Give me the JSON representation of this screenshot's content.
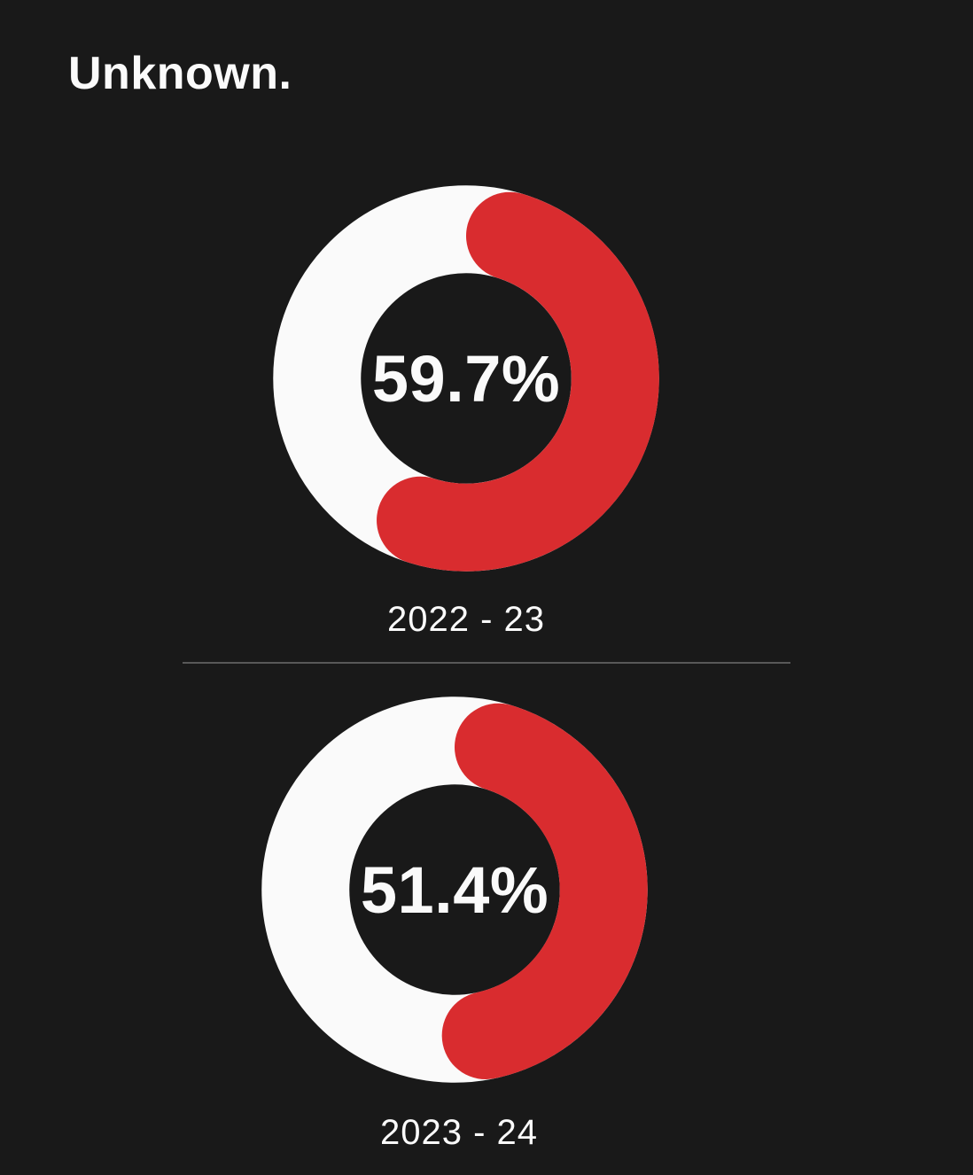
{
  "page": {
    "title": "Unknown.",
    "background_color": "#191919",
    "text_color": "#fafafa",
    "divider_color": "#585858"
  },
  "chart_data": [
    {
      "type": "pie",
      "variant": "donut-gauge",
      "title": "2022 - 23",
      "center_label": "59.7%",
      "start_angle_deg": 0,
      "direction": "clockwise",
      "rounded_caps": true,
      "legend": "none",
      "series": [
        {
          "name": "value",
          "value": 59.7,
          "color": "#d92c2f"
        },
        {
          "name": "remainder",
          "value": 40.3,
          "color": "#fafafa"
        }
      ]
    },
    {
      "type": "pie",
      "variant": "donut-gauge",
      "title": "2023 - 24",
      "center_label": "51.4%",
      "start_angle_deg": 0,
      "direction": "clockwise",
      "rounded_caps": true,
      "legend": "none",
      "series": [
        {
          "name": "value",
          "value": 51.4,
          "color": "#d92c2f"
        },
        {
          "name": "remainder",
          "value": 48.6,
          "color": "#fafafa"
        }
      ]
    }
  ]
}
